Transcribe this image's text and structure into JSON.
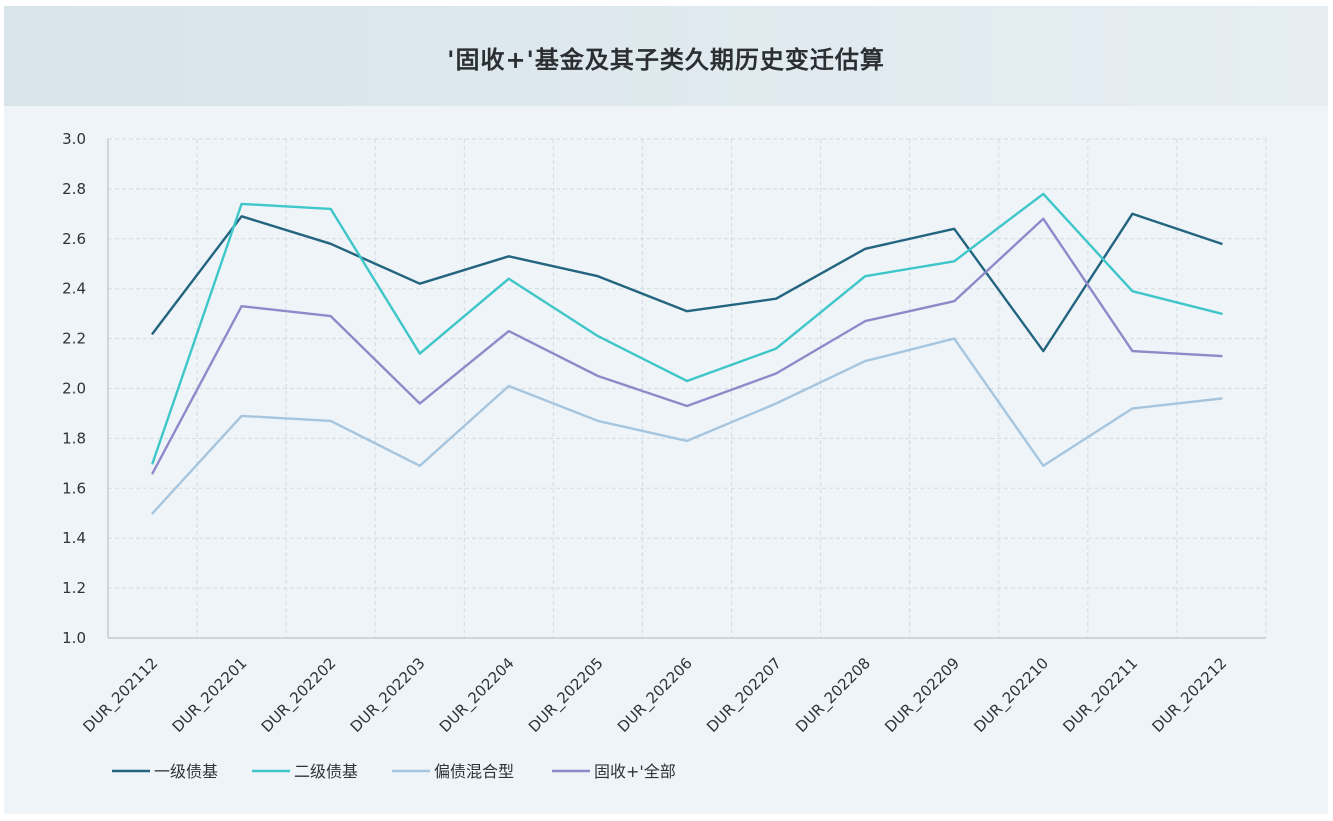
{
  "chart_data": {
    "type": "line",
    "title": "'固收+'基金及其子类久期历史变迁估算",
    "xlabel": "",
    "ylabel": "",
    "categories": [
      "DUR_202112",
      "DUR_202201",
      "DUR_202202",
      "DUR_202203",
      "DUR_202204",
      "DUR_202205",
      "DUR_202206",
      "DUR_202207",
      "DUR_202208",
      "DUR_202209",
      "DUR_202210",
      "DUR_202211",
      "DUR_202212"
    ],
    "ylim": [
      1.0,
      3.0
    ],
    "yticks": [
      "1.0",
      "1.2",
      "1.4",
      "1.6",
      "1.8",
      "2.0",
      "2.2",
      "2.4",
      "2.6",
      "2.8",
      "3.0"
    ],
    "grid": true,
    "legend_position": "bottom-left",
    "series": [
      {
        "name": "一级债基",
        "color": "#23647f",
        "values": [
          2.22,
          2.69,
          2.58,
          2.42,
          2.53,
          2.45,
          2.31,
          2.36,
          2.56,
          2.64,
          2.15,
          2.7,
          2.58
        ]
      },
      {
        "name": "二级债基",
        "color": "#3ec6c9",
        "values": [
          1.7,
          2.74,
          2.72,
          2.14,
          2.44,
          2.21,
          2.03,
          2.16,
          2.45,
          2.51,
          2.78,
          2.39,
          2.3
        ]
      },
      {
        "name": "偏债混合型",
        "color": "#a6c6df",
        "values": [
          1.5,
          1.89,
          1.87,
          1.69,
          2.01,
          1.87,
          1.79,
          1.94,
          2.11,
          2.2,
          1.69,
          1.92,
          1.96
        ]
      },
      {
        "name": "固收+'全部",
        "color": "#9089c9",
        "values": [
          1.66,
          2.33,
          2.29,
          1.94,
          2.23,
          2.05,
          1.93,
          2.06,
          2.27,
          2.35,
          2.68,
          2.15,
          2.13
        ]
      }
    ]
  }
}
